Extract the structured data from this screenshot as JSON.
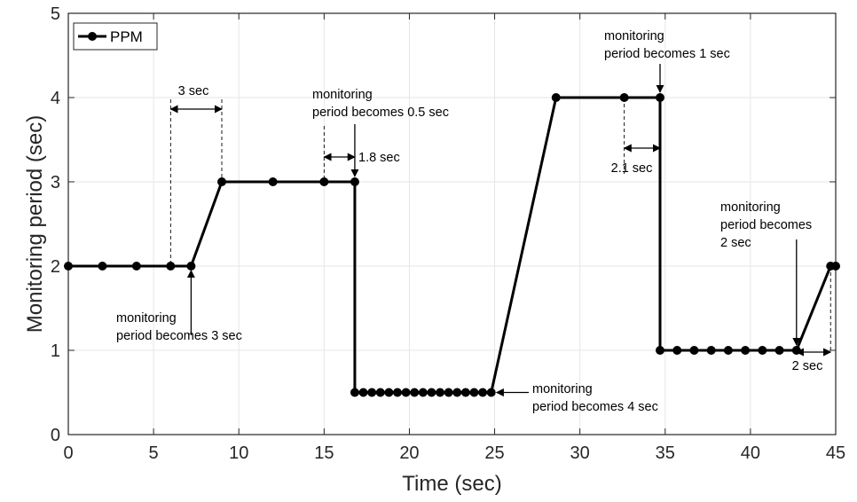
{
  "chart_data": {
    "type": "line",
    "xlabel": "Time (sec)",
    "ylabel": "Monitoring period (sec)",
    "xlim": [
      0,
      45
    ],
    "ylim": [
      0,
      5
    ],
    "xticks": [
      0,
      5,
      10,
      15,
      20,
      25,
      30,
      35,
      40,
      45
    ],
    "yticks": [
      0,
      1,
      2,
      3,
      4,
      5
    ],
    "grid": true,
    "legend_position": "top-left",
    "colors": {
      "series": "#000000",
      "grid": "#e6e6e6",
      "axes": "#262626"
    },
    "series": [
      {
        "name": "PPM",
        "points": [
          [
            0,
            2
          ],
          [
            2,
            2
          ],
          [
            4,
            2
          ],
          [
            6,
            2
          ],
          [
            7.2,
            2
          ],
          [
            9.0,
            3
          ],
          [
            12.0,
            3
          ],
          [
            15.0,
            3
          ],
          [
            16.8,
            3
          ],
          [
            16.8,
            0.5
          ],
          [
            17.3,
            0.5
          ],
          [
            17.8,
            0.5
          ],
          [
            18.3,
            0.5
          ],
          [
            18.8,
            0.5
          ],
          [
            19.3,
            0.5
          ],
          [
            19.8,
            0.5
          ],
          [
            20.3,
            0.5
          ],
          [
            20.8,
            0.5
          ],
          [
            21.3,
            0.5
          ],
          [
            21.8,
            0.5
          ],
          [
            22.3,
            0.5
          ],
          [
            22.8,
            0.5
          ],
          [
            23.3,
            0.5
          ],
          [
            23.8,
            0.5
          ],
          [
            24.3,
            0.5
          ],
          [
            24.8,
            0.5
          ],
          [
            28.6,
            4
          ],
          [
            32.6,
            4
          ],
          [
            34.7,
            4
          ],
          [
            34.7,
            1
          ],
          [
            35.7,
            1
          ],
          [
            36.7,
            1
          ],
          [
            37.7,
            1
          ],
          [
            38.7,
            1
          ],
          [
            39.7,
            1
          ],
          [
            40.7,
            1
          ],
          [
            41.7,
            1
          ],
          [
            42.7,
            1
          ],
          [
            44.7,
            2
          ],
          [
            45.0,
            2
          ]
        ]
      }
    ],
    "annotations": [
      {
        "text_lines": [
          "monitoring",
          "period becomes 3 sec"
        ],
        "x": 7.2,
        "y": 2
      },
      {
        "text_lines": [
          "3 sec"
        ],
        "x_from": 6.0,
        "x_to": 9.0
      },
      {
        "text_lines": [
          "monitoring",
          "period becomes 0.5 sec"
        ],
        "x": 16.8,
        "y": 3
      },
      {
        "text_lines": [
          "1.8 sec"
        ],
        "x_from": 15.0,
        "x_to": 16.8
      },
      {
        "text_lines": [
          "monitoring",
          "period becomes 4 sec"
        ],
        "x": 24.8,
        "y": 0.5
      },
      {
        "text_lines": [
          "monitoring",
          "period becomes 1 sec"
        ],
        "x": 34.7,
        "y": 4
      },
      {
        "text_lines": [
          "2.1 sec"
        ],
        "x_from": 32.6,
        "x_to": 34.7
      },
      {
        "text_lines": [
          "monitoring",
          "period becomes",
          "2 sec"
        ],
        "x": 42.7,
        "y": 1
      },
      {
        "text_lines": [
          "2 sec"
        ],
        "x_from": 42.7,
        "x_to": 44.7
      }
    ]
  }
}
